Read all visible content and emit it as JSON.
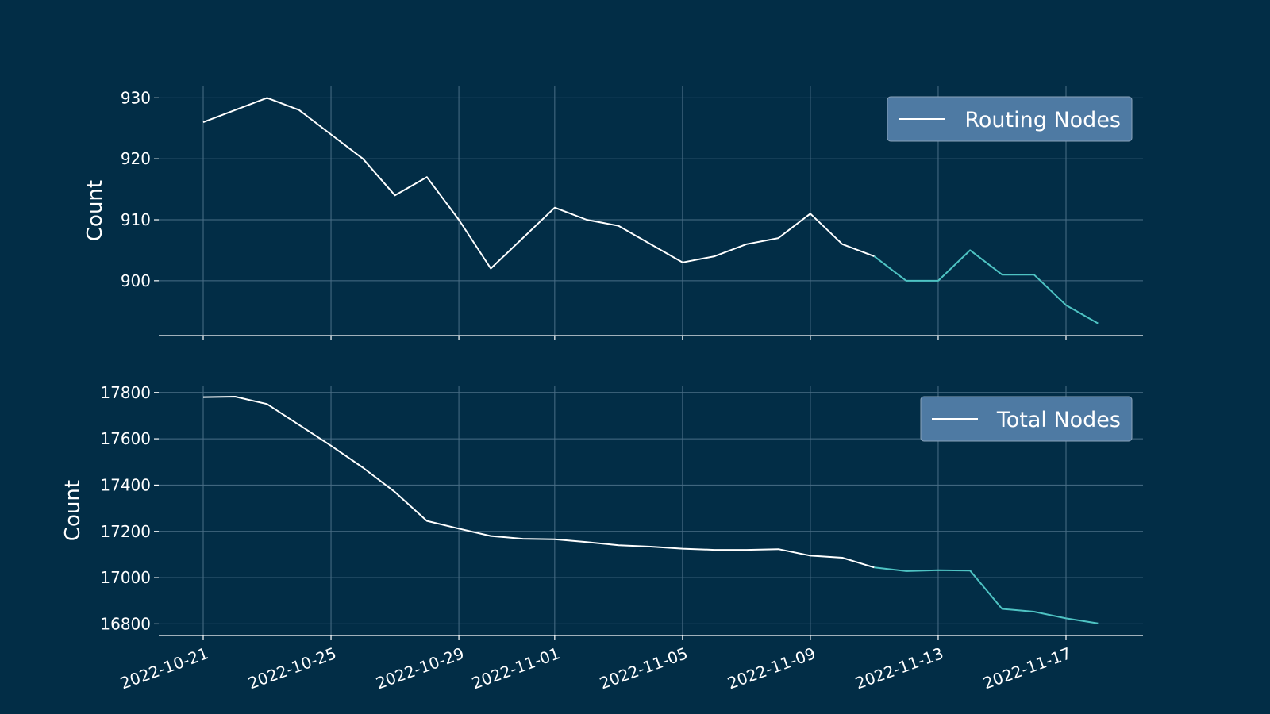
{
  "chart_data": [
    {
      "type": "line",
      "title": "",
      "xlabel": "",
      "ylabel": "Count",
      "ylim": [
        891,
        932
      ],
      "yticks": [
        900,
        910,
        920,
        930
      ],
      "xticks": [
        "2022-10-21",
        "2022-10-25",
        "2022-10-29",
        "2022-11-01",
        "2022-11-05",
        "2022-11-09",
        "2022-11-13",
        "2022-11-17"
      ],
      "grid": true,
      "legend": "top-right",
      "series": [
        {
          "name": "Routing Nodes",
          "color": "#ffffff",
          "x": [
            "2022-10-21",
            "2022-10-22",
            "2022-10-23",
            "2022-10-24",
            "2022-10-25",
            "2022-10-26",
            "2022-10-27",
            "2022-10-28",
            "2022-10-29",
            "2022-10-30",
            "2022-10-31",
            "2022-11-01",
            "2022-11-02",
            "2022-11-03",
            "2022-11-04",
            "2022-11-05",
            "2022-11-06",
            "2022-11-07",
            "2022-11-08",
            "2022-11-09",
            "2022-11-10",
            "2022-11-11"
          ],
          "values": [
            926,
            928,
            930,
            928,
            924,
            920,
            914,
            917,
            910,
            902,
            907,
            912,
            910,
            909,
            906,
            903,
            904,
            906,
            907,
            911,
            906,
            904
          ]
        },
        {
          "name": "",
          "color": "#4ec3c3",
          "x": [
            "2022-11-11",
            "2022-11-12",
            "2022-11-13",
            "2022-11-14",
            "2022-11-15",
            "2022-11-16",
            "2022-11-17",
            "2022-11-18"
          ],
          "values": [
            904,
            900,
            900,
            905,
            901,
            901,
            896,
            893
          ]
        }
      ]
    },
    {
      "type": "line",
      "title": "",
      "xlabel": "",
      "ylabel": "Count",
      "ylim": [
        16750,
        17830
      ],
      "yticks": [
        16800,
        17000,
        17200,
        17400,
        17600,
        17800
      ],
      "xticks": [
        "2022-10-21",
        "2022-10-25",
        "2022-10-29",
        "2022-11-01",
        "2022-11-05",
        "2022-11-09",
        "2022-11-13",
        "2022-11-17"
      ],
      "grid": true,
      "legend": "top-right",
      "series": [
        {
          "name": "Total Nodes",
          "color": "#ffffff",
          "x": [
            "2022-10-21",
            "2022-10-22",
            "2022-10-23",
            "2022-10-24",
            "2022-10-25",
            "2022-10-26",
            "2022-10-27",
            "2022-10-28",
            "2022-10-29",
            "2022-10-30",
            "2022-10-31",
            "2022-11-01",
            "2022-11-02",
            "2022-11-03",
            "2022-11-04",
            "2022-11-05",
            "2022-11-06",
            "2022-11-07",
            "2022-11-08",
            "2022-11-09",
            "2022-11-10",
            "2022-11-11"
          ],
          "values": [
            17780,
            17782,
            17750,
            17660,
            17570,
            17475,
            17370,
            17245,
            17212,
            17180,
            17168,
            17166,
            17154,
            17140,
            17134,
            17125,
            17120,
            17120,
            17123,
            17095,
            17086,
            17044
          ]
        },
        {
          "name": "",
          "color": "#4ec3c3",
          "x": [
            "2022-11-11",
            "2022-11-12",
            "2022-11-13",
            "2022-11-14",
            "2022-11-15",
            "2022-11-16",
            "2022-11-17",
            "2022-11-18"
          ],
          "values": [
            17044,
            17028,
            17032,
            17030,
            16865,
            16853,
            16824,
            16802
          ]
        }
      ]
    }
  ],
  "colors": {
    "background": "#022d46",
    "grid": "#4a6e86",
    "axis": "#ffffff",
    "legend_box": "#4e7aa3"
  }
}
